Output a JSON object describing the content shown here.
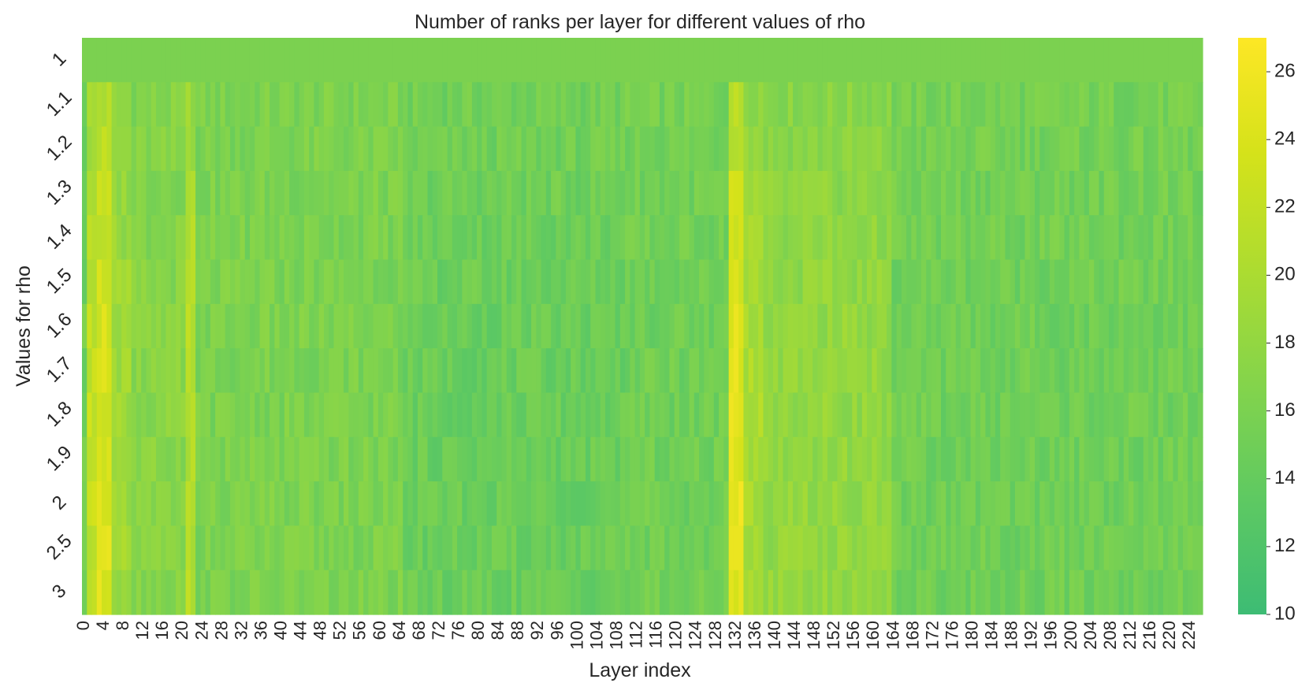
{
  "chart_data": {
    "type": "heatmap",
    "title": "Number of ranks per layer for different values of rho",
    "xlabel": "Layer index",
    "ylabel": "Values for rho",
    "rho_values": [
      "1",
      "1.1",
      "1.2",
      "1.3",
      "1.4",
      "1.5",
      "1.6",
      "1.7",
      "1.8",
      "1.9",
      "2",
      "2.5",
      "3"
    ],
    "layer_count": 227,
    "x_tick_labels": [
      "0",
      "4",
      "8",
      "12",
      "16",
      "20",
      "24",
      "28",
      "32",
      "36",
      "40",
      "44",
      "48",
      "52",
      "56",
      "60",
      "64",
      "68",
      "72",
      "76",
      "80",
      "84",
      "88",
      "92",
      "96",
      "100",
      "104",
      "108",
      "112",
      "116",
      "120",
      "124",
      "128",
      "132",
      "136",
      "140",
      "144",
      "148",
      "152",
      "156",
      "160",
      "164",
      "168",
      "172",
      "176",
      "180",
      "184",
      "188",
      "192",
      "196",
      "200",
      "204",
      "208",
      "212",
      "216",
      "220",
      "224"
    ],
    "colorbar": {
      "min": 10,
      "max": 27,
      "ticks": [
        "10",
        "12",
        "14",
        "16",
        "18",
        "20",
        "22",
        "24",
        "26"
      ]
    },
    "colormap_stops": [
      "#3dbc74",
      "#5ec962",
      "#84d44b",
      "#addc30",
      "#d5e21a",
      "#fde725"
    ],
    "row_base_value": 16,
    "column_profile_segments": [
      {
        "from": 0,
        "to": 0,
        "value": 15
      },
      {
        "from": 1,
        "to": 2,
        "value": 22
      },
      {
        "from": 3,
        "to": 5,
        "value": 24
      },
      {
        "from": 6,
        "to": 9,
        "value": 19
      },
      {
        "from": 10,
        "to": 20,
        "value": 17
      },
      {
        "from": 21,
        "to": 22,
        "value": 21
      },
      {
        "from": 23,
        "to": 64,
        "value": 16
      },
      {
        "from": 65,
        "to": 109,
        "value": 14.5
      },
      {
        "from": 110,
        "to": 130,
        "value": 15
      },
      {
        "from": 131,
        "to": 133,
        "value": 25
      },
      {
        "from": 134,
        "to": 137,
        "value": 20
      },
      {
        "from": 138,
        "to": 163,
        "value": 18
      },
      {
        "from": 164,
        "to": 226,
        "value": 15
      }
    ],
    "row_one_value": 16
  }
}
